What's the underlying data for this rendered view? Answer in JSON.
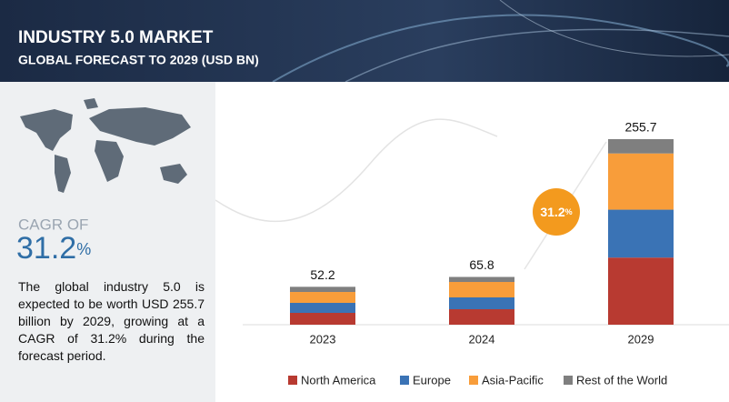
{
  "header": {
    "title": "INDUSTRY 5.0 MARKET",
    "subtitle": "GLOBAL FORECAST TO 2029 (USD BN)"
  },
  "summary": {
    "cagr_label": "CAGR OF",
    "cagr": "31.2",
    "cagr_unit": "%",
    "description": "The global industry 5.0 is expected to be worth USD 255.7 billion by 2029, growing at a CAGR of 31.2% during the forecast period."
  },
  "chart_data": {
    "type": "stacked_bar",
    "categories": [
      "2023",
      "2024",
      "2029"
    ],
    "totals": [
      52.2,
      65.8,
      255.7
    ],
    "series": [
      {
        "name": "North America",
        "color": "#b83a31",
        "values": [
          16.3,
          21.3,
          92.5
        ]
      },
      {
        "name": "Europe",
        "color": "#3a73b5",
        "values": [
          13.8,
          16.3,
          66
        ]
      },
      {
        "name": "Asia-Pacific",
        "color": "#f89d3a",
        "values": [
          15,
          21.3,
          77.5
        ]
      },
      {
        "name": "Rest of the World",
        "color": "#7f7f7f",
        "values": [
          7.1,
          6.9,
          19.7
        ]
      }
    ]
  }
}
